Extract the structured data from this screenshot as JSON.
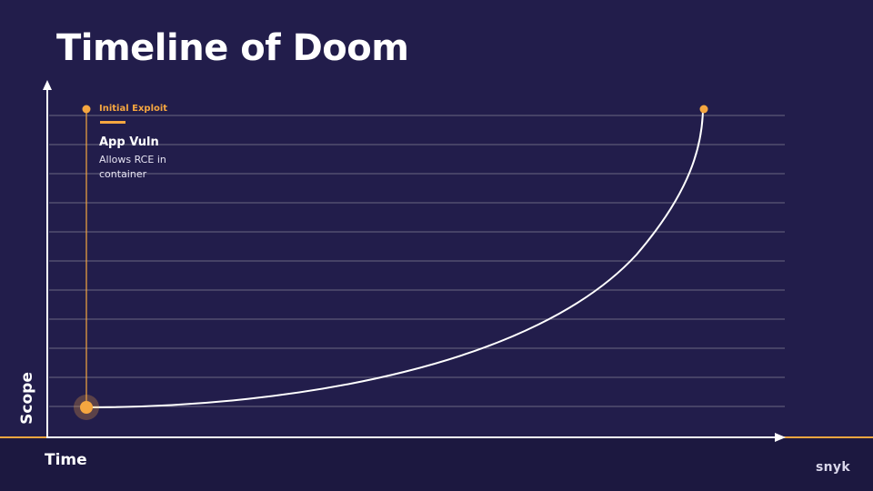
{
  "slide": {
    "title": "Timeline of Doom",
    "brand": "snyk"
  },
  "axes": {
    "x_label": "Time",
    "y_label": "Scope"
  },
  "event": {
    "tag": "Initial Exploit",
    "heading": "App Vuln",
    "description": "Allows RCE in container"
  },
  "colors": {
    "background": "#221d4b",
    "accent": "#f5a640",
    "gridline": "#6b6781",
    "curve": "#ffffff"
  }
}
